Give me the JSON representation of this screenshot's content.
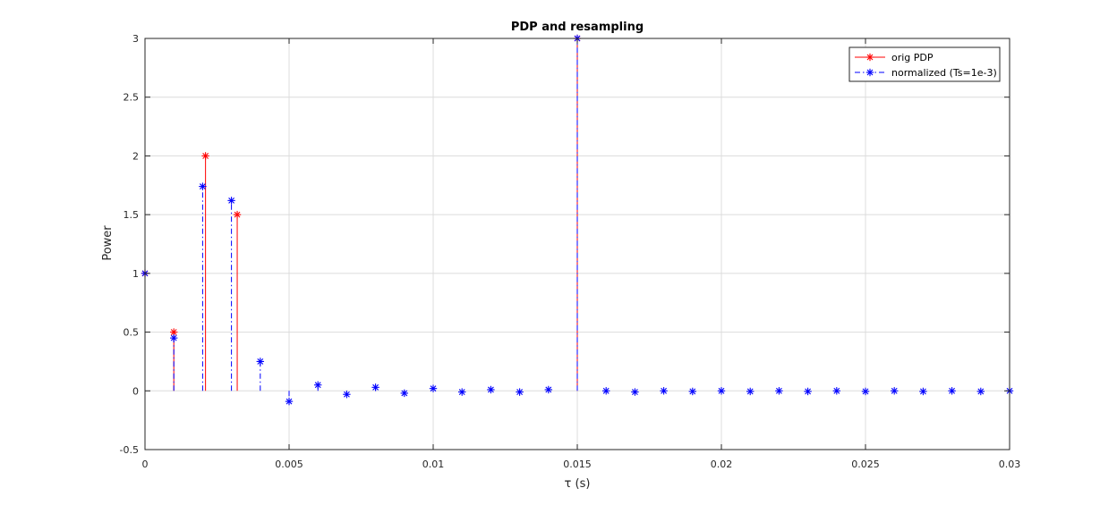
{
  "chart_data": {
    "type": "stem",
    "title": "PDP and resampling",
    "xlabel": "τ (s)",
    "ylabel": "Power",
    "xlim": [
      0,
      0.03
    ],
    "ylim": [
      -0.5,
      3
    ],
    "grid": true,
    "legend_position": "top-right",
    "x_ticks": [
      0,
      0.005,
      0.01,
      0.015,
      0.02,
      0.025,
      0.03
    ],
    "x_tick_labels": [
      "0",
      "0.005",
      "0.01",
      "0.015",
      "0.02",
      "0.025",
      "0.03"
    ],
    "y_ticks": [
      -0.5,
      0,
      0.5,
      1,
      1.5,
      2,
      2.5,
      3
    ],
    "y_tick_labels": [
      "-0.5",
      "0",
      "0.5",
      "1",
      "1.5",
      "2",
      "2.5",
      "3"
    ],
    "series": [
      {
        "name": "orig PDP",
        "color": "#ff0000",
        "line_style": "solid",
        "marker": "asterisk",
        "x": [
          0,
          0.001,
          0.0021,
          0.0032,
          0.015
        ],
        "y": [
          1,
          0.5,
          2,
          1.5,
          3
        ]
      },
      {
        "name": "normalized (Ts=1e-3)",
        "color": "#0000ff",
        "line_style": "dash-dot",
        "marker": "asterisk",
        "x": [
          0,
          0.001,
          0.002,
          0.003,
          0.004,
          0.005,
          0.006,
          0.007,
          0.008,
          0.009,
          0.01,
          0.011,
          0.012,
          0.013,
          0.014,
          0.015,
          0.016,
          0.017,
          0.018,
          0.019,
          0.02,
          0.021,
          0.022,
          0.023,
          0.024,
          0.025,
          0.026,
          0.027,
          0.028,
          0.029,
          0.03
        ],
        "y": [
          1,
          0.45,
          1.74,
          1.62,
          0.25,
          -0.09,
          0.05,
          -0.03,
          0.03,
          -0.02,
          0.02,
          -0.01,
          0.01,
          -0.01,
          0.01,
          3,
          0.0,
          -0.01,
          0.0,
          -0.005,
          0.0,
          -0.005,
          0.0,
          -0.005,
          0.0,
          -0.005,
          0.0,
          -0.005,
          0.0,
          -0.005,
          0.0
        ]
      }
    ]
  }
}
